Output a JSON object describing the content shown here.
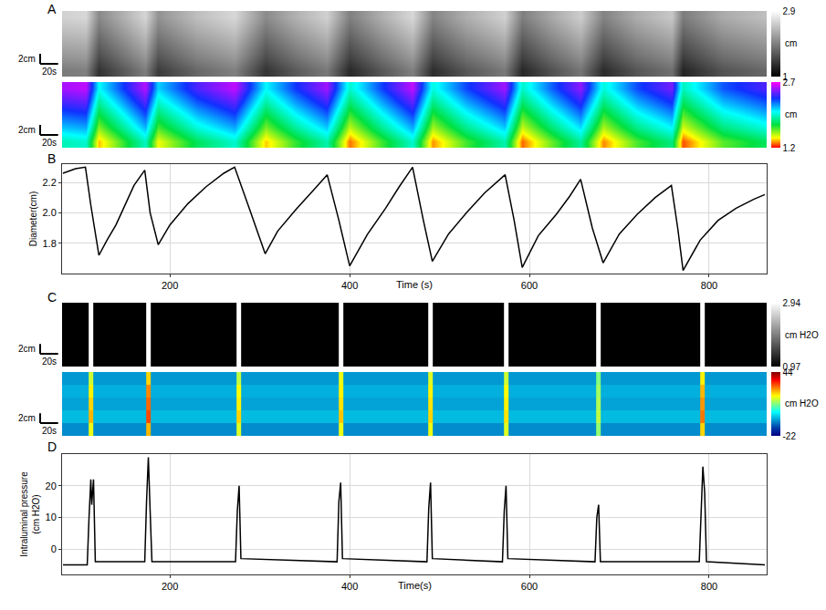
{
  "chart_data": [
    {
      "type": "heatmap",
      "title": "A",
      "x": [
        81,
        106,
        121,
        145,
        172,
        187,
        230,
        272,
        306,
        340,
        375,
        400,
        435,
        470,
        492,
        530,
        573,
        592,
        625,
        657,
        682,
        720,
        758,
        771,
        815,
        862
      ],
      "y": [
        1.3,
        3.9,
        6.5,
        9.1,
        11.7
      ],
      "xlim": [
        80,
        864
      ],
      "ylim": [
        0,
        13
      ],
      "tick_labels": false,
      "cells": [
        [
          2.56,
          2.6,
          2.02,
          2.28,
          2.58,
          2.09,
          2.42,
          2.6,
          2.03,
          2.32,
          2.55,
          1.95,
          2.3,
          2.6,
          1.98,
          2.3,
          2.55,
          1.94,
          2.26,
          2.52,
          1.97,
          2.29,
          2.48,
          1.92,
          2.27,
          2.42
        ],
        [
          2.41,
          2.45,
          1.87,
          2.13,
          2.43,
          1.94,
          2.27,
          2.45,
          1.88,
          2.17,
          2.4,
          1.8,
          2.15,
          2.45,
          1.83,
          2.15,
          2.4,
          1.79,
          2.11,
          2.37,
          1.82,
          2.14,
          2.33,
          1.77,
          2.12,
          2.27
        ],
        [
          2.26,
          2.3,
          1.72,
          1.98,
          2.28,
          1.79,
          2.12,
          2.3,
          1.73,
          2.02,
          2.25,
          1.65,
          2.0,
          2.3,
          1.68,
          2.0,
          2.25,
          1.64,
          1.96,
          2.22,
          1.67,
          1.99,
          2.18,
          1.62,
          1.97,
          2.12
        ],
        [
          2.11,
          2.15,
          1.57,
          1.83,
          2.13,
          1.64,
          1.97,
          2.15,
          1.58,
          1.87,
          2.1,
          1.5,
          1.85,
          2.15,
          1.53,
          1.85,
          2.1,
          1.49,
          1.81,
          2.07,
          1.52,
          1.84,
          2.03,
          1.47,
          1.82,
          1.97
        ],
        [
          1.91,
          1.95,
          1.37,
          1.63,
          1.93,
          1.44,
          1.77,
          1.95,
          1.38,
          1.67,
          1.9,
          1.3,
          1.65,
          1.95,
          1.33,
          1.65,
          1.9,
          1.29,
          1.61,
          1.87,
          1.32,
          1.64,
          1.83,
          1.27,
          1.62,
          1.77
        ]
      ],
      "maps": [
        {
          "zlim": [
            1,
            2.9
          ],
          "zticks": [
            1,
            2.9
          ]
        },
        {
          "zlim": [
            1.2,
            2.7
          ],
          "zticks": [
            1.2,
            2.7
          ]
        }
      ],
      "colorbar_title": "cm",
      "scale_bar": {
        "x": 20,
        "x_label": "20s",
        "y": 2,
        "y_label": "2cm"
      }
    },
    {
      "type": "line",
      "title": "B",
      "x": [
        81,
        95,
        106,
        112,
        121,
        130,
        140,
        150,
        160,
        172,
        178,
        187,
        200,
        220,
        240,
        260,
        272,
        290,
        306,
        320,
        340,
        360,
        375,
        388,
        400,
        420,
        440,
        455,
        470,
        482,
        492,
        510,
        530,
        550,
        573,
        583,
        592,
        610,
        630,
        645,
        657,
        670,
        682,
        700,
        720,
        740,
        758,
        765,
        771,
        790,
        810,
        830,
        850,
        862
      ],
      "values": [
        2.26,
        2.29,
        2.3,
        2.05,
        1.72,
        1.82,
        1.92,
        2.05,
        2.18,
        2.28,
        2.0,
        1.79,
        1.92,
        2.06,
        2.17,
        2.26,
        2.3,
        2.0,
        1.73,
        1.88,
        2.02,
        2.15,
        2.25,
        1.95,
        1.65,
        1.86,
        2.03,
        2.17,
        2.3,
        1.95,
        1.68,
        1.86,
        2.0,
        2.13,
        2.25,
        1.95,
        1.64,
        1.85,
        1.99,
        2.11,
        2.22,
        1.9,
        1.67,
        1.86,
        1.99,
        2.1,
        2.18,
        1.9,
        1.62,
        1.82,
        1.95,
        2.03,
        2.09,
        2.12
      ],
      "xlim": [
        80,
        864
      ],
      "xticks": [
        200,
        400,
        600,
        800
      ],
      "ylim": [
        1.6,
        2.32
      ],
      "yticks": [
        1.8,
        {
          "value": 2,
          "label": "2.0"
        },
        2.2
      ],
      "x_label": "Time (s)",
      "y_label": "Diameter(cm)",
      "color": "#000000",
      "grid": true
    },
    {
      "type": "heatmap",
      "title": "C",
      "x": [
        81,
        107,
        112,
        117,
        171,
        176,
        181,
        272,
        277,
        282,
        385,
        390,
        395,
        485,
        490,
        495,
        569,
        574,
        579,
        672,
        677,
        682,
        788,
        793,
        798,
        862
      ],
      "y": [
        1.3,
        3.9,
        6.5,
        9.1,
        11.7
      ],
      "xlim": [
        80,
        864
      ],
      "ylim": [
        0,
        13
      ],
      "tick_labels": false,
      "cells": [
        [
          -6,
          -6,
          16,
          -6,
          -6,
          22,
          -6,
          -6,
          15,
          -6,
          -6,
          18,
          -6,
          -6,
          17,
          -6,
          -6,
          16,
          -6,
          -6,
          11,
          -6,
          -6,
          20,
          -6,
          -6
        ],
        [
          -4,
          -4,
          20,
          -4,
          -4,
          27,
          -4,
          -4,
          19,
          -4,
          -4,
          20,
          -4,
          -4,
          20,
          -4,
          -4,
          19,
          -4,
          -4,
          13,
          -4,
          -4,
          24,
          -4,
          -4
        ],
        [
          -5,
          -5,
          22,
          -5,
          -5,
          29,
          -5,
          -5,
          20,
          -5,
          -5,
          21,
          -5,
          -5,
          21,
          -5,
          -5,
          20,
          -5,
          -5,
          14,
          -5,
          -5,
          26,
          -5,
          -5
        ],
        [
          -3,
          -3,
          24,
          -3,
          -3,
          31,
          -3,
          -3,
          22,
          -3,
          -3,
          23,
          -3,
          -3,
          22,
          -3,
          -3,
          21,
          -3,
          -3,
          15,
          -3,
          -3,
          28,
          -3,
          -3
        ],
        [
          -7,
          -7,
          18,
          -7,
          -7,
          24,
          -7,
          -7,
          17,
          -7,
          -7,
          18,
          -7,
          -7,
          18,
          -7,
          -7,
          17,
          -7,
          -7,
          12,
          -7,
          -7,
          22,
          -7,
          -7
        ]
      ],
      "maps": [
        {
          "zlim": [
            0.97,
            2.94
          ],
          "zticks": [
            0.97,
            2.94
          ]
        },
        {
          "zlim": [
            -22,
            44
          ],
          "zticks": [
            -22,
            44
          ]
        }
      ],
      "colorbar_title": "cm H2O",
      "scale_bar": {
        "x": 20,
        "x_label": "20s",
        "y": 2,
        "y_label": "2cm"
      }
    },
    {
      "type": "line",
      "title": "D",
      "x": [
        81,
        108,
        110,
        112,
        113,
        115,
        117,
        172,
        174,
        176,
        178,
        180,
        273,
        275,
        277,
        279,
        386,
        388,
        390,
        392,
        486,
        488,
        490,
        492,
        570,
        572,
        574,
        576,
        673,
        675,
        677,
        679,
        789,
        791,
        793,
        795,
        797,
        862
      ],
      "values": [
        -5,
        -5,
        10,
        22,
        14,
        22,
        -4,
        -4,
        15,
        29,
        12,
        -4,
        -4,
        12,
        20,
        -3,
        -4,
        15,
        21,
        -3,
        -4,
        13,
        21,
        -3,
        -4,
        12,
        20,
        -3,
        -4,
        10,
        14,
        -4,
        -4,
        14,
        26,
        18,
        -4,
        -5
      ],
      "xlim": [
        80,
        864
      ],
      "xticks": [
        200,
        400,
        600,
        800
      ],
      "ylim": [
        -8,
        30
      ],
      "yticks": [
        0,
        10,
        20
      ],
      "x_label": "Time(s)",
      "y_label": "Intraluminal pressure (cm H2O)",
      "color": "#000000",
      "grid": true
    }
  ]
}
